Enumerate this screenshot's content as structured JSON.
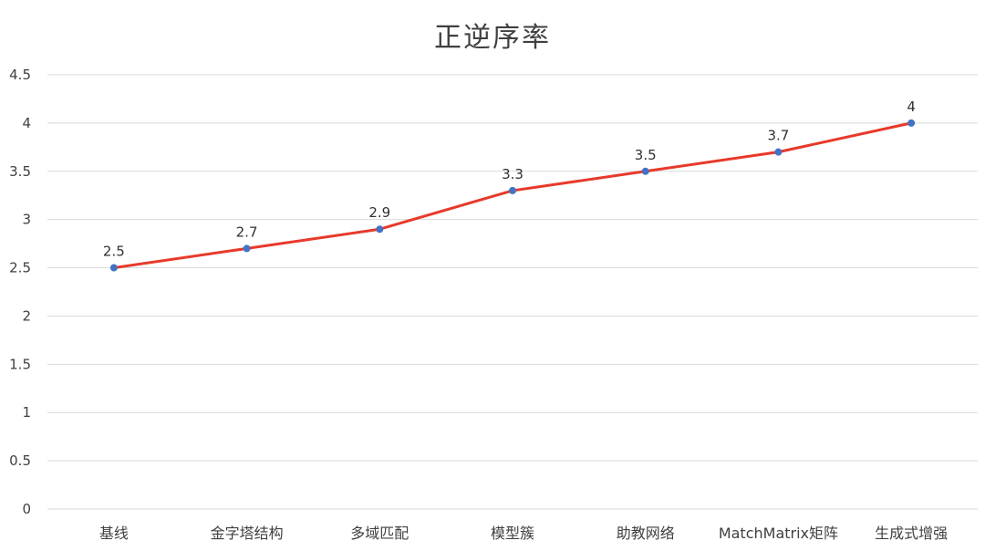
{
  "chart_data": {
    "type": "line",
    "title": "正逆序率",
    "categories": [
      "基线",
      "金字塔结构",
      "多域匹配",
      "模型簇",
      "助教网络",
      "MatchMatrix矩阵",
      "生成式增强"
    ],
    "series": [
      {
        "values": [
          2.5,
          2.7,
          2.9,
          3.3,
          3.5,
          3.7,
          4
        ],
        "color": "#e8392a",
        "marker_color": "#4472c4"
      }
    ],
    "data_labels": [
      "2.5",
      "2.7",
      "2.9",
      "3.3",
      "3.5",
      "3.7",
      "4"
    ],
    "yticks": [
      "0",
      "0.5",
      "1",
      "1.5",
      "2",
      "2.5",
      "3",
      "3.5",
      "4",
      "4.5"
    ],
    "ylim": [
      0,
      4.5
    ],
    "grid": true,
    "legend": "none"
  }
}
